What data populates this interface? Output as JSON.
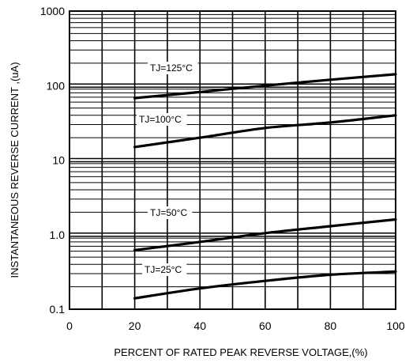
{
  "chart_data": {
    "type": "line",
    "title": "",
    "xlabel": "PERCENT OF RATED PEAK REVERSE VOLTAGE,(%)",
    "ylabel": "INSTANTANEOUS REVERSE CURRENT ,(uA)",
    "x_scale": "linear",
    "y_scale": "log",
    "xlim": [
      0,
      100
    ],
    "ylim": [
      0.1,
      1000
    ],
    "grid": true,
    "x_ticks": [
      "0",
      "20",
      "40",
      "60",
      "80",
      "100"
    ],
    "y_ticks": [
      "0.1",
      "1.0",
      "10",
      "100",
      "1000"
    ],
    "series": [
      {
        "name": "TJ=125°C",
        "x": [
          20,
          40,
          60,
          80,
          100
        ],
        "y": [
          68,
          82,
          100,
          120,
          142
        ]
      },
      {
        "name": "TJ=100°C",
        "x": [
          20,
          40,
          60,
          80,
          100
        ],
        "y": [
          15,
          20,
          27,
          32,
          40
        ]
      },
      {
        "name": "TJ=50°C",
        "x": [
          20,
          40,
          60,
          80,
          100
        ],
        "y": [
          0.62,
          0.8,
          1.05,
          1.3,
          1.6
        ]
      },
      {
        "name": "TJ=25°C",
        "x": [
          20,
          40,
          60,
          80,
          100
        ],
        "y": [
          0.14,
          0.19,
          0.24,
          0.29,
          0.32
        ]
      }
    ]
  }
}
